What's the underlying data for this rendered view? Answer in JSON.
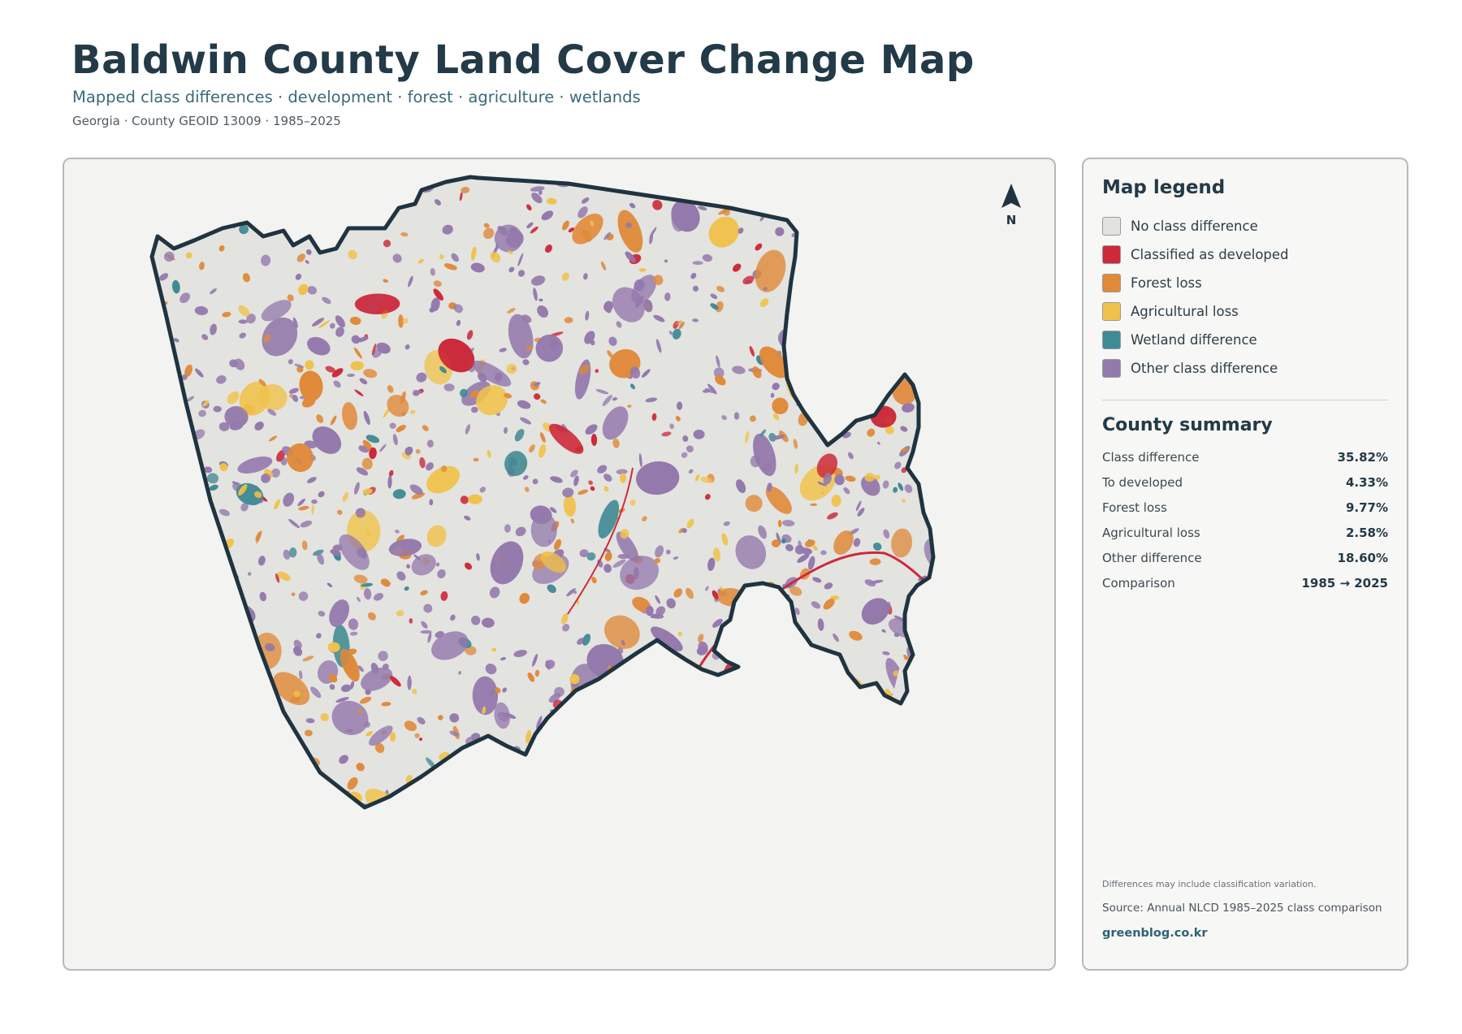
{
  "header": {
    "title": "Baldwin County Land Cover Change Map",
    "subtitle": "Mapped class differences · development · forest · agriculture · wetlands",
    "meta": "Georgia · County GEOID 13009 · 1985–2025"
  },
  "map": {
    "north_label": "N"
  },
  "legend": {
    "title": "Map legend",
    "items": [
      {
        "label": "No class difference",
        "color": "#e2e2e0"
      },
      {
        "label": "Classified as developed",
        "color": "#cc2a3a"
      },
      {
        "label": "Forest loss",
        "color": "#e08a3a"
      },
      {
        "label": "Agricultural loss",
        "color": "#f0c24a"
      },
      {
        "label": "Wetland difference",
        "color": "#3f8a93"
      },
      {
        "label": "Other class difference",
        "color": "#9479ac"
      }
    ]
  },
  "summary": {
    "title": "County summary",
    "rows": [
      {
        "label": "Class difference",
        "value": "35.82%"
      },
      {
        "label": "To developed",
        "value": "4.33%"
      },
      {
        "label": "Forest loss",
        "value": "9.77%"
      },
      {
        "label": "Agricultural loss",
        "value": "2.58%"
      },
      {
        "label": "Other difference",
        "value": "18.60%"
      },
      {
        "label": "Comparison",
        "value": "1985 → 2025"
      }
    ]
  },
  "footer": {
    "note": "Differences may include classification variation.",
    "source": "Source: Annual NLCD 1985–2025 class comparison",
    "site": "greenblog.co.kr"
  },
  "colors": {
    "title": "#233a48",
    "accent": "#3a6a78",
    "boundary": "#1f3440",
    "panel_bg": "#f3f3f1"
  }
}
